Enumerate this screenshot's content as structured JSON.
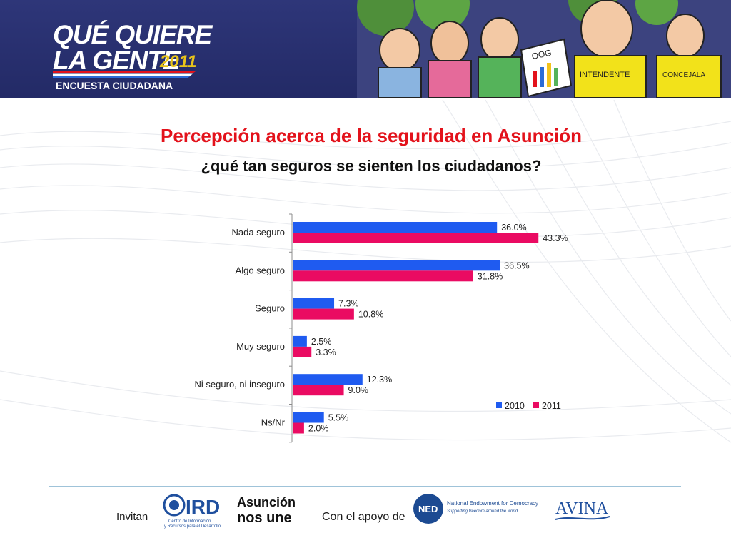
{
  "header": {
    "logo_line1": "QUÉ QUIERE",
    "logo_line2": "LA GENTE",
    "logo_year": "2011",
    "logo_subtitle": "ENCUESTA CIUDADANA",
    "illustration_signs": [
      "OOG",
      "INTENDENTE",
      "CONCEJALA"
    ]
  },
  "title": "Percepción acerca de la seguridad en Asunción",
  "subtitle": "¿qué tan seguros se sienten los ciudadanos?",
  "chart_data": {
    "type": "bar",
    "orientation": "horizontal",
    "categories": [
      "Nada seguro",
      "Algo seguro",
      "Seguro",
      "Muy seguro",
      "Ni seguro, ni inseguro",
      "Ns/Nr"
    ],
    "series": [
      {
        "name": "2010",
        "color": "#1f5bf0",
        "values": [
          36.0,
          36.5,
          7.3,
          2.5,
          12.3,
          5.5
        ]
      },
      {
        "name": "2011",
        "color": "#ea0b62",
        "values": [
          43.3,
          31.8,
          10.8,
          3.3,
          9.0,
          2.0
        ]
      }
    ],
    "value_format": "%",
    "legend_position": "right",
    "grid": false
  },
  "footer": {
    "invite_label": "Invitan",
    "ird_logo": "IRD",
    "ird_caption_1": "Centro de Información",
    "ird_caption_2": "y Recursos para el Desarrollo",
    "asuncion_logo_1": "Asunción",
    "asuncion_logo_2": "nos une",
    "support_label": "Con el apoyo de",
    "ned_logo": "NED",
    "ned_name": "National Endowment for Democracy",
    "ned_tagline": "Supporting freedom around the world",
    "avina_logo": "AVINA"
  }
}
